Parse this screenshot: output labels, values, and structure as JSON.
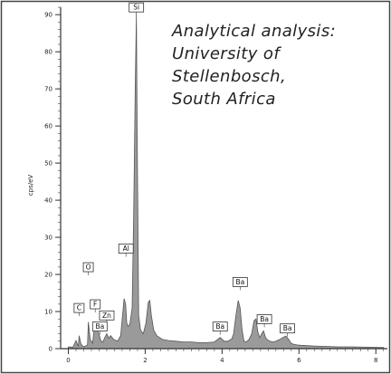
{
  "annotation": {
    "lines": [
      "Analytical analysis:",
      "University of",
      "Stellenbosch,",
      "South Africa"
    ]
  },
  "chart_data": {
    "type": "area",
    "title": "",
    "xlabel": "",
    "ylabel": "cps/eV",
    "xlim": [
      -0.2,
      8.3
    ],
    "ylim": [
      0,
      92
    ],
    "xticks": [
      0,
      2,
      4,
      6,
      8
    ],
    "yticks": [
      0,
      10,
      20,
      30,
      40,
      50,
      60,
      70,
      80,
      90
    ],
    "grid": false,
    "fill_color": "#9a9a9a",
    "line_color": "#555555",
    "series": [
      {
        "x": [
          0.0,
          0.12,
          0.2,
          0.26,
          0.28,
          0.33,
          0.4,
          0.5,
          0.52,
          0.57,
          0.63,
          0.68,
          0.71,
          0.78,
          0.85,
          0.9,
          0.95,
          1.0,
          1.05,
          1.1,
          1.18,
          1.28,
          1.36,
          1.42,
          1.45,
          1.49,
          1.52,
          1.55,
          1.6,
          1.66,
          1.7,
          1.74,
          1.77,
          1.79,
          1.83,
          1.88,
          1.95,
          2.02,
          2.08,
          2.12,
          2.16,
          2.22,
          2.3,
          2.45,
          2.6,
          2.8,
          3.0,
          3.2,
          3.4,
          3.6,
          3.8,
          3.95,
          4.05,
          4.15,
          4.25,
          4.3,
          4.36,
          4.42,
          4.47,
          4.52,
          4.57,
          4.63,
          4.7,
          4.77,
          4.83,
          4.88,
          4.93,
          4.98,
          5.03,
          5.08,
          5.13,
          5.18,
          5.25,
          5.32,
          5.4,
          5.5,
          5.58,
          5.66,
          5.74,
          5.8,
          5.86,
          5.95,
          6.05,
          6.2,
          6.4,
          6.7,
          7.0,
          7.4,
          7.8,
          8.2
        ],
        "values": [
          0.5,
          0.4,
          2.2,
          0.6,
          3.5,
          1.2,
          0.5,
          1.0,
          7.2,
          2.5,
          1.5,
          6.0,
          7.0,
          4.5,
          2.0,
          1.8,
          3.0,
          4.0,
          2.8,
          3.5,
          2.5,
          2.0,
          3.5,
          10.0,
          13.5,
          12.0,
          7.0,
          6.0,
          6.5,
          11.0,
          36.0,
          70.0,
          90.0,
          60.0,
          9.0,
          5.0,
          4.0,
          7.0,
          12.5,
          13.0,
          9.0,
          5.0,
          3.5,
          2.5,
          2.2,
          2.0,
          1.8,
          1.8,
          1.6,
          1.6,
          1.8,
          3.0,
          2.0,
          2.0,
          2.6,
          4.0,
          9.0,
          13.0,
          11.0,
          5.0,
          2.0,
          1.8,
          2.5,
          4.0,
          7.5,
          8.0,
          4.5,
          3.0,
          4.0,
          4.8,
          3.0,
          2.4,
          2.0,
          1.8,
          2.0,
          2.5,
          3.0,
          3.4,
          2.4,
          1.4,
          1.2,
          1.0,
          0.9,
          0.8,
          0.7,
          0.6,
          0.5,
          0.5,
          0.4,
          0.3
        ]
      }
    ],
    "peak_labels": [
      {
        "text": "Si",
        "x": 1.77,
        "y": 90
      },
      {
        "text": "Al",
        "x": 1.5,
        "y": 25
      },
      {
        "text": "O",
        "x": 0.52,
        "y": 20
      },
      {
        "text": "C",
        "x": 0.28,
        "y": 9
      },
      {
        "text": "F",
        "x": 0.7,
        "y": 10
      },
      {
        "text": "Zn",
        "x": 1.0,
        "y": 7
      },
      {
        "text": "Ba",
        "x": 0.82,
        "y": 4
      },
      {
        "text": "Ba",
        "x": 4.47,
        "y": 16
      },
      {
        "text": "Ba",
        "x": 3.95,
        "y": 4
      },
      {
        "text": "Ba",
        "x": 5.1,
        "y": 6
      },
      {
        "text": "Ba",
        "x": 5.7,
        "y": 3.5
      }
    ]
  }
}
